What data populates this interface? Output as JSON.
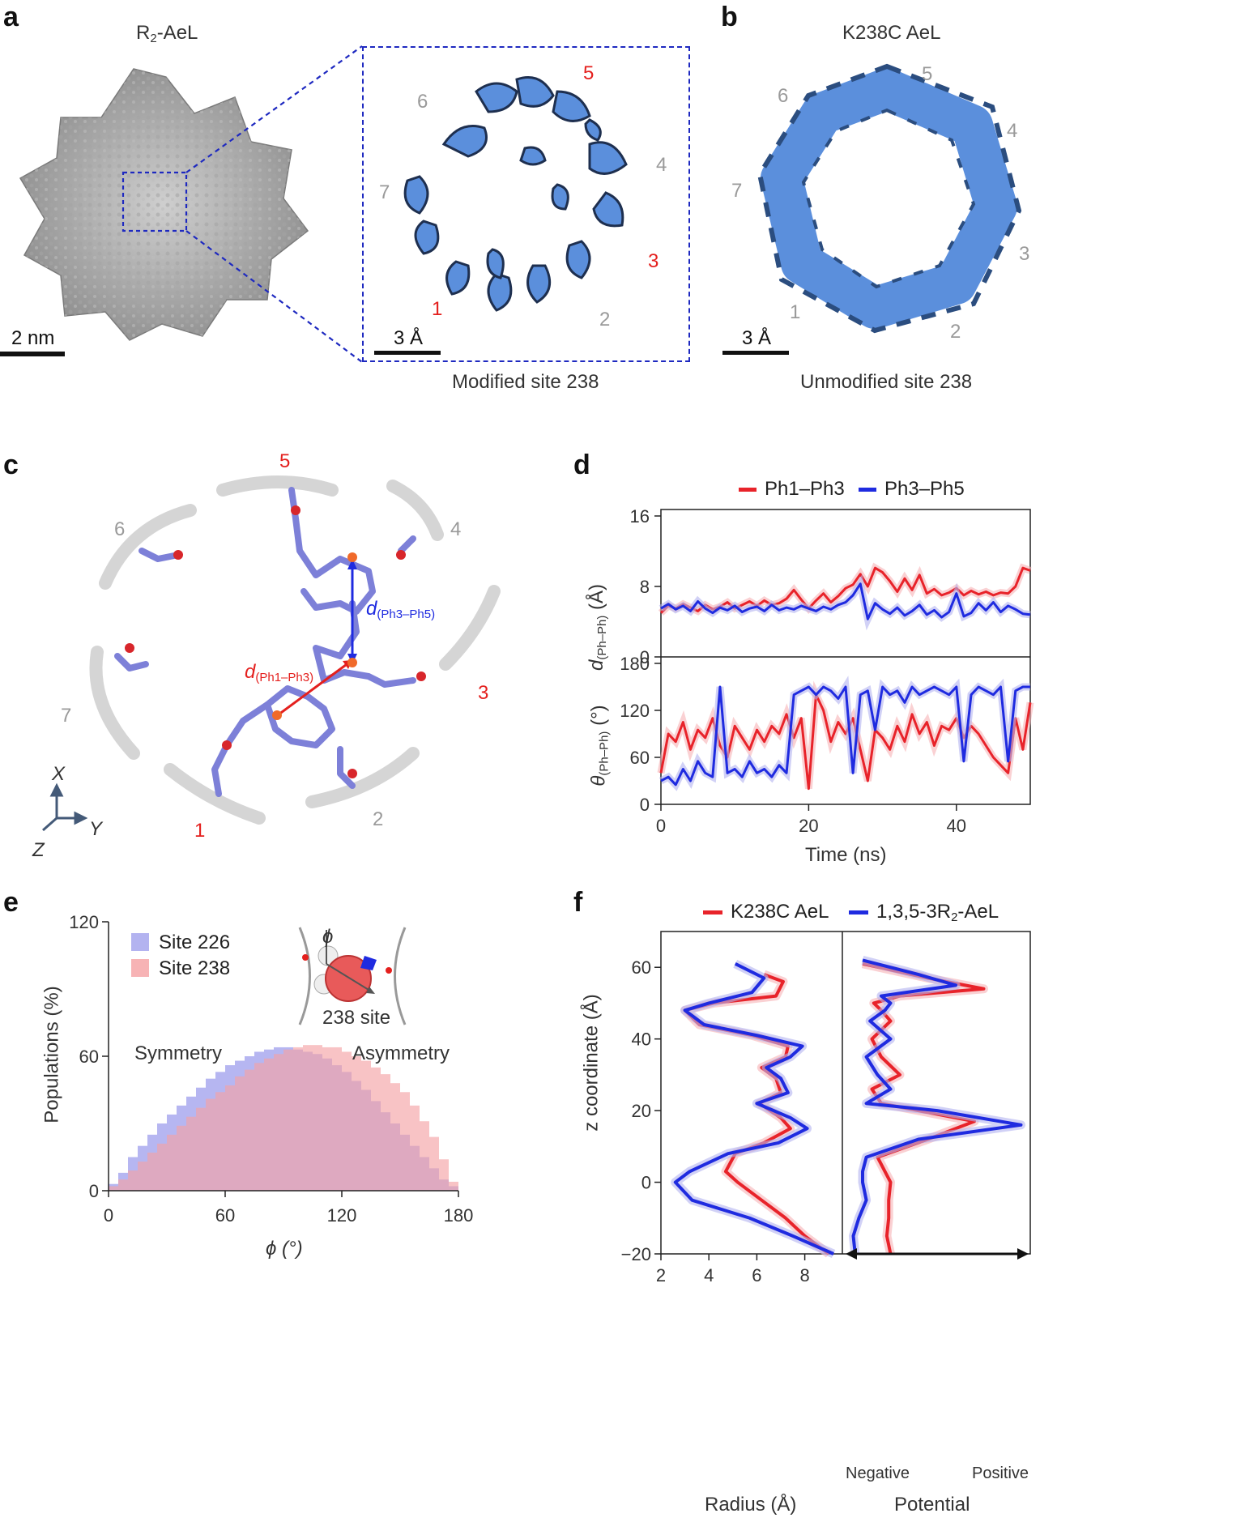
{
  "panels": {
    "a": {
      "letter": "a",
      "title_main": "R",
      "title_sub": "2",
      "title_rest": "-AeL",
      "scale_main": "2 nm",
      "scale_inset": "3 Å",
      "caption": "Modified site 238",
      "site_labels": [
        {
          "n": "1",
          "c": "red"
        },
        {
          "n": "2",
          "c": "grey"
        },
        {
          "n": "3",
          "c": "red"
        },
        {
          "n": "4",
          "c": "grey"
        },
        {
          "n": "5",
          "c": "red"
        },
        {
          "n": "6",
          "c": "grey"
        },
        {
          "n": "7",
          "c": "grey"
        }
      ]
    },
    "b": {
      "letter": "b",
      "title": "K238C AeL",
      "scale": "3 Å",
      "caption": "Unmodified site 238",
      "site_labels": [
        "1",
        "2",
        "3",
        "4",
        "5",
        "6",
        "7"
      ]
    },
    "c": {
      "letter": "c",
      "site_labels": [
        {
          "n": "1",
          "c": "red"
        },
        {
          "n": "2",
          "c": "grey"
        },
        {
          "n": "3",
          "c": "red"
        },
        {
          "n": "4",
          "c": "grey"
        },
        {
          "n": "5",
          "c": "red"
        },
        {
          "n": "6",
          "c": "grey"
        },
        {
          "n": "7",
          "c": "grey"
        }
      ],
      "d1_main": "d",
      "d1_sub": "(Ph1–Ph3)",
      "d2_main": "d",
      "d2_sub": "(Ph3–Ph5)",
      "axis_x": "X",
      "axis_y": "Y",
      "axis_z": "Z"
    },
    "d": {
      "letter": "d"
    },
    "e": {
      "letter": "e",
      "inset_phi": "ϕ",
      "inset_label": "238 site",
      "symmetry": "Symmetry",
      "asymmetry": "Asymmetry"
    },
    "f": {
      "letter": "f"
    }
  },
  "colors": {
    "red": "#e8232a",
    "blue": "#1f2be0",
    "light_red": "#f7b3b5",
    "light_blue": "#b3b3f0",
    "purple": "#b77fc4",
    "map_blue": "#5b8fdc",
    "map_dark": "#1e2f4f",
    "stick": "#7d80d8"
  },
  "chart_data": [
    {
      "id": "d_top",
      "type": "line",
      "title": "",
      "legend": [
        "Ph1–Ph3",
        "Ph3–Ph5"
      ],
      "ylabel_main": "d",
      "ylabel_sub": "(Ph–Ph)",
      "ylabel_unit": " (Å)",
      "ylim": [
        0,
        16
      ],
      "yticks": [
        0,
        8,
        16
      ],
      "xlim": [
        0,
        50
      ],
      "series": [
        {
          "name": "Ph1–Ph3",
          "x": [
            0,
            1,
            2,
            3,
            4,
            5,
            6,
            7,
            8,
            9,
            10,
            11,
            12,
            13,
            14,
            15,
            16,
            17,
            18,
            19,
            20,
            21,
            22,
            23,
            24,
            25,
            26,
            27,
            28,
            29,
            30,
            31,
            32,
            33,
            34,
            35,
            36,
            37,
            38,
            39,
            40,
            41,
            42,
            43,
            44,
            45,
            46,
            47,
            48,
            49,
            50
          ],
          "values": [
            5.0,
            5.8,
            5.5,
            6.0,
            5.6,
            5.2,
            5.9,
            5.4,
            5.7,
            6.2,
            5.5,
            5.9,
            6.3,
            5.8,
            6.4,
            5.9,
            6.1,
            6.6,
            7.6,
            6.5,
            5.5,
            6.4,
            7.2,
            6.2,
            6.9,
            7.8,
            8.2,
            9.4,
            8.0,
            10.1,
            9.6,
            8.6,
            7.4,
            8.9,
            7.6,
            9.3,
            7.2,
            7.7,
            7.0,
            7.3,
            7.8,
            7.0,
            7.5,
            7.1,
            7.4,
            7.0,
            7.3,
            7.2,
            8.0,
            10.1,
            9.8
          ]
        },
        {
          "name": "Ph3–Ph5",
          "x": [
            0,
            1,
            2,
            3,
            4,
            5,
            6,
            7,
            8,
            9,
            10,
            11,
            12,
            13,
            14,
            15,
            16,
            17,
            18,
            19,
            20,
            21,
            22,
            23,
            24,
            25,
            26,
            27,
            28,
            29,
            30,
            31,
            32,
            33,
            34,
            35,
            36,
            37,
            38,
            39,
            40,
            41,
            42,
            43,
            44,
            45,
            46,
            47,
            48,
            49,
            50
          ],
          "values": [
            5.5,
            6.0,
            5.4,
            5.8,
            5.2,
            6.3,
            5.5,
            5.0,
            5.6,
            5.3,
            5.8,
            5.1,
            5.5,
            5.7,
            5.2,
            5.9,
            5.3,
            5.6,
            5.4,
            5.8,
            5.5,
            5.2,
            5.7,
            5.4,
            5.9,
            6.2,
            7.0,
            8.3,
            4.3,
            6.1,
            5.4,
            4.9,
            5.6,
            4.7,
            5.2,
            5.9,
            4.8,
            5.3,
            4.5,
            5.1,
            7.2,
            4.6,
            5.0,
            6.1,
            5.3,
            6.2,
            5.1,
            5.8,
            5.4,
            4.9,
            4.8
          ]
        }
      ]
    },
    {
      "id": "d_bottom",
      "type": "line",
      "ylabel_main": "θ",
      "ylabel_sub": "(Ph–Ph)",
      "ylabel_unit": " (°)",
      "xlabel": "Time (ns)",
      "ylim": [
        0,
        180
      ],
      "yticks": [
        0,
        60,
        120,
        180
      ],
      "xlim": [
        0,
        50
      ],
      "xticks": [
        0,
        20,
        40
      ],
      "series": [
        {
          "name": "Ph1–Ph3",
          "x": [
            0,
            1,
            2,
            3,
            4,
            5,
            6,
            7,
            8,
            9,
            10,
            11,
            12,
            13,
            14,
            15,
            16,
            17,
            18,
            19,
            20,
            21,
            22,
            23,
            24,
            25,
            26,
            27,
            28,
            29,
            30,
            31,
            32,
            33,
            34,
            35,
            36,
            37,
            38,
            39,
            40,
            41,
            42,
            43,
            44,
            45,
            46,
            47,
            48,
            49,
            50
          ],
          "values": [
            40,
            90,
            80,
            105,
            70,
            95,
            85,
            110,
            75,
            60,
            100,
            85,
            70,
            95,
            80,
            100,
            90,
            115,
            85,
            110,
            20,
            140,
            120,
            80,
            105,
            90,
            110,
            70,
            30,
            95,
            85,
            70,
            100,
            80,
            115,
            90,
            105,
            75,
            100,
            95,
            110,
            85,
            100,
            90,
            75,
            60,
            50,
            40,
            110,
            70,
            130
          ]
        },
        {
          "name": "Ph3–Ph5",
          "x": [
            0,
            1,
            2,
            3,
            4,
            5,
            6,
            7,
            8,
            9,
            10,
            11,
            12,
            13,
            14,
            15,
            16,
            17,
            18,
            19,
            20,
            21,
            22,
            23,
            24,
            25,
            26,
            27,
            28,
            29,
            30,
            31,
            32,
            33,
            34,
            35,
            36,
            37,
            38,
            39,
            40,
            41,
            42,
            43,
            44,
            45,
            46,
            47,
            48,
            49,
            50
          ],
          "values": [
            30,
            35,
            25,
            45,
            30,
            55,
            40,
            35,
            150,
            40,
            45,
            35,
            55,
            40,
            45,
            35,
            50,
            40,
            140,
            145,
            150,
            140,
            150,
            145,
            135,
            150,
            40,
            140,
            145,
            95,
            150,
            140,
            145,
            130,
            150,
            140,
            145,
            150,
            145,
            140,
            150,
            55,
            140,
            150,
            145,
            140,
            150,
            55,
            145,
            150,
            150
          ]
        }
      ]
    },
    {
      "id": "e",
      "type": "bar",
      "legend": [
        "Site 226",
        "Site 238"
      ],
      "xlabel": "ϕ (°)",
      "ylabel": "Populations (%)",
      "xlim": [
        0,
        180
      ],
      "xticks": [
        0,
        60,
        120,
        180
      ],
      "ylim": [
        0,
        120
      ],
      "yticks": [
        0,
        60,
        120
      ],
      "bin_width": 5,
      "series": [
        {
          "name": "Site 226",
          "x": [
            2.5,
            7.5,
            12.5,
            17.5,
            22.5,
            27.5,
            32.5,
            37.5,
            42.5,
            47.5,
            52.5,
            57.5,
            62.5,
            67.5,
            72.5,
            77.5,
            82.5,
            87.5,
            92.5,
            97.5,
            102.5,
            107.5,
            112.5,
            117.5,
            122.5,
            127.5,
            132.5,
            137.5,
            142.5,
            147.5,
            152.5,
            157.5,
            162.5,
            167.5,
            172.5,
            177.5
          ],
          "values": [
            3,
            8,
            15,
            20,
            25,
            30,
            34,
            38,
            42,
            46,
            50,
            53,
            56,
            58,
            60,
            62,
            63,
            64,
            64,
            63,
            62,
            61,
            59,
            56,
            53,
            49,
            45,
            40,
            35,
            30,
            25,
            20,
            15,
            10,
            5,
            2
          ]
        },
        {
          "name": "Site 238",
          "x": [
            2.5,
            7.5,
            12.5,
            17.5,
            22.5,
            27.5,
            32.5,
            37.5,
            42.5,
            47.5,
            52.5,
            57.5,
            62.5,
            67.5,
            72.5,
            77.5,
            82.5,
            87.5,
            92.5,
            97.5,
            102.5,
            107.5,
            112.5,
            117.5,
            122.5,
            127.5,
            132.5,
            137.5,
            142.5,
            147.5,
            152.5,
            157.5,
            162.5,
            167.5,
            172.5,
            177.5
          ],
          "values": [
            2,
            5,
            9,
            13,
            17,
            21,
            25,
            29,
            33,
            37,
            41,
            44,
            47,
            51,
            54,
            57,
            59,
            61,
            63,
            64,
            65,
            65,
            64,
            64,
            62,
            60,
            58,
            55,
            52,
            48,
            44,
            38,
            31,
            24,
            14,
            4
          ]
        }
      ]
    },
    {
      "id": "f_radius",
      "type": "line",
      "legend": [
        "K238C AeL",
        "1,3,5-3R2-AeL"
      ],
      "legend_text_1": "K238C AeL",
      "legend_text_2_main": "1,3,5-3R",
      "legend_text_2_sub": "2",
      "legend_text_2_rest": "-AeL",
      "xlabel": "Radius (Å)",
      "ylabel": "z coordinate (Å)",
      "xlim": [
        2,
        9.5
      ],
      "xticks": [
        2,
        4,
        6,
        8
      ],
      "ylim": [
        -20,
        70
      ],
      "yticks": [
        -20,
        0,
        20,
        40,
        60
      ],
      "series": [
        {
          "name": "K238C AeL",
          "x": [
            6.3,
            7.1,
            6.8,
            4.2,
            3.0,
            3.6,
            5.8,
            7.3,
            7.2,
            6.2,
            6.8,
            7.0,
            6.1,
            7.0,
            7.4,
            6.3,
            5.1,
            4.7,
            5.2,
            6.2,
            7.2,
            8.0,
            9.0
          ],
          "y": [
            58,
            56,
            52,
            50,
            48,
            44,
            41,
            38,
            35,
            32,
            29,
            25,
            22,
            18,
            15,
            11,
            8,
            3,
            0,
            -5,
            -10,
            -15,
            -20
          ]
        },
        {
          "name": "1,3,5-3R2-AeL",
          "x": [
            5.1,
            6.3,
            5.8,
            4.0,
            3.0,
            3.8,
            6.0,
            7.9,
            7.4,
            6.4,
            7.0,
            7.3,
            6.0,
            7.4,
            8.1,
            6.9,
            4.8,
            3.2,
            2.6,
            3.3,
            5.7,
            7.5,
            9.2
          ],
          "y": [
            61,
            57,
            53,
            50,
            48,
            44,
            41,
            38,
            35,
            32,
            29,
            25,
            22,
            18,
            15,
            11,
            8,
            3,
            0,
            -5,
            -10,
            -15,
            -20
          ]
        }
      ]
    },
    {
      "id": "f_potential",
      "type": "line",
      "xlabel": "Potential",
      "x_neg": "Negative",
      "x_pos": "Positive",
      "ylim": [
        -20,
        70
      ],
      "series": [
        {
          "name": "K238C AeL",
          "x": [
            0.1,
            0.45,
            0.75,
            0.3,
            0.16,
            0.2,
            0.25,
            0.15,
            0.2,
            0.3,
            0.15,
            0.2,
            0.4,
            0.7,
            0.45,
            0.18,
            0.22,
            0.25,
            0.24,
            0.24,
            0.23,
            0.25
          ],
          "y": [
            61,
            57,
            54,
            52,
            50,
            48,
            45,
            40,
            35,
            30,
            26,
            22,
            20,
            17,
            12,
            7,
            3,
            0,
            -5,
            -10,
            -15,
            -20
          ]
        },
        {
          "name": "1,3,5-3R2-AeL",
          "x": [
            0.1,
            0.4,
            0.6,
            0.2,
            0.25,
            0.22,
            0.14,
            0.25,
            0.12,
            0.18,
            0.25,
            0.12,
            0.5,
            0.95,
            0.4,
            0.12,
            0.1,
            0.1,
            0.12,
            0.08,
            0.05,
            0.06
          ],
          "y": [
            62,
            58,
            55,
            52,
            50,
            48,
            45,
            40,
            35,
            30,
            26,
            22,
            20,
            16,
            12,
            7,
            3,
            0,
            -5,
            -10,
            -15,
            -20
          ]
        }
      ]
    }
  ],
  "axis_labels": {
    "d_top_ticks": [
      "0",
      "8",
      "16"
    ],
    "d_bottom_ticks": [
      "0",
      "60",
      "120",
      "180"
    ],
    "d_x_ticks": [
      "0",
      "20",
      "40"
    ],
    "e_x_ticks": [
      "0",
      "60",
      "120",
      "180"
    ],
    "e_y_ticks": [
      "0",
      "60",
      "120"
    ],
    "f_y_ticks": [
      "−20",
      "0",
      "20",
      "40",
      "60"
    ],
    "f_x_ticks": [
      "2",
      "4",
      "6",
      "8"
    ]
  }
}
